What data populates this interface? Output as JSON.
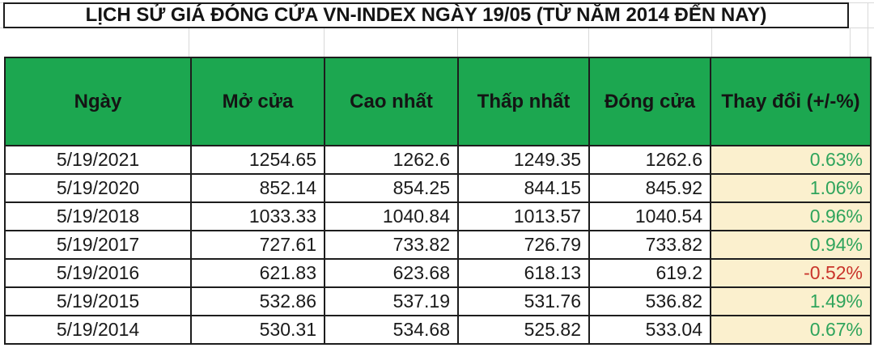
{
  "title": "LỊCH SỬ GIÁ ĐÓNG CỬA VN-INDEX NGÀY 19/05 (TỪ NĂM 2014 ĐẾN NAY)",
  "table": {
    "headers": [
      "Ngày",
      "Mở cửa",
      "Cao nhất",
      "Thấp nhất",
      "Đóng cửa",
      "Thay đổi (+/-%)"
    ],
    "rows": [
      {
        "date": "5/19/2021",
        "open": "1254.65",
        "high": "1262.6",
        "low": "1249.35",
        "close": "1262.6",
        "change": "0.63%"
      },
      {
        "date": "5/19/2020",
        "open": "852.14",
        "high": "854.25",
        "low": "844.15",
        "close": "845.92",
        "change": "1.06%"
      },
      {
        "date": "5/19/2018",
        "open": "1033.33",
        "high": "1040.84",
        "low": "1013.57",
        "close": "1040.54",
        "change": "0.96%"
      },
      {
        "date": "5/19/2017",
        "open": "727.61",
        "high": "733.82",
        "low": "726.79",
        "close": "733.82",
        "change": "0.94%"
      },
      {
        "date": "5/19/2016",
        "open": "621.83",
        "high": "623.68",
        "low": "618.13",
        "close": "619.2",
        "change": "-0.52%"
      },
      {
        "date": "5/19/2015",
        "open": "532.86",
        "high": "537.19",
        "low": "531.76",
        "close": "536.82",
        "change": "1.49%"
      },
      {
        "date": "5/19/2014",
        "open": "530.31",
        "high": "534.68",
        "low": "525.82",
        "close": "533.04",
        "change": "0.67%"
      }
    ]
  },
  "colors": {
    "header_bg": "#1ca750",
    "change_col_bg": "#fbf0ce",
    "positive_text": "#2fa45c",
    "negative_text": "#c9342b",
    "border": "#1d1d1d"
  },
  "chart_data": {
    "type": "table",
    "title": "LỊCH SỬ GIÁ ĐÓNG CỬA VN-INDEX NGÀY 19/05 (TỪ NĂM 2014 ĐẾN NAY)",
    "columns": [
      "Ngày",
      "Mở cửa",
      "Cao nhất",
      "Thấp nhất",
      "Đóng cửa",
      "Thay đổi (+/-%)"
    ],
    "rows": [
      [
        "5/19/2021",
        1254.65,
        1262.6,
        1249.35,
        1262.6,
        "0.63%"
      ],
      [
        "5/19/2020",
        852.14,
        854.25,
        844.15,
        845.92,
        "1.06%"
      ],
      [
        "5/19/2018",
        1033.33,
        1040.84,
        1013.57,
        1040.54,
        "0.96%"
      ],
      [
        "5/19/2017",
        727.61,
        733.82,
        726.79,
        733.82,
        "0.94%"
      ],
      [
        "5/19/2016",
        621.83,
        623.68,
        618.13,
        619.2,
        "-0.52%"
      ],
      [
        "5/19/2015",
        532.86,
        537.19,
        531.76,
        536.82,
        "1.49%"
      ],
      [
        "5/19/2014",
        530.31,
        534.68,
        525.82,
        533.04,
        "0.67%"
      ]
    ]
  }
}
